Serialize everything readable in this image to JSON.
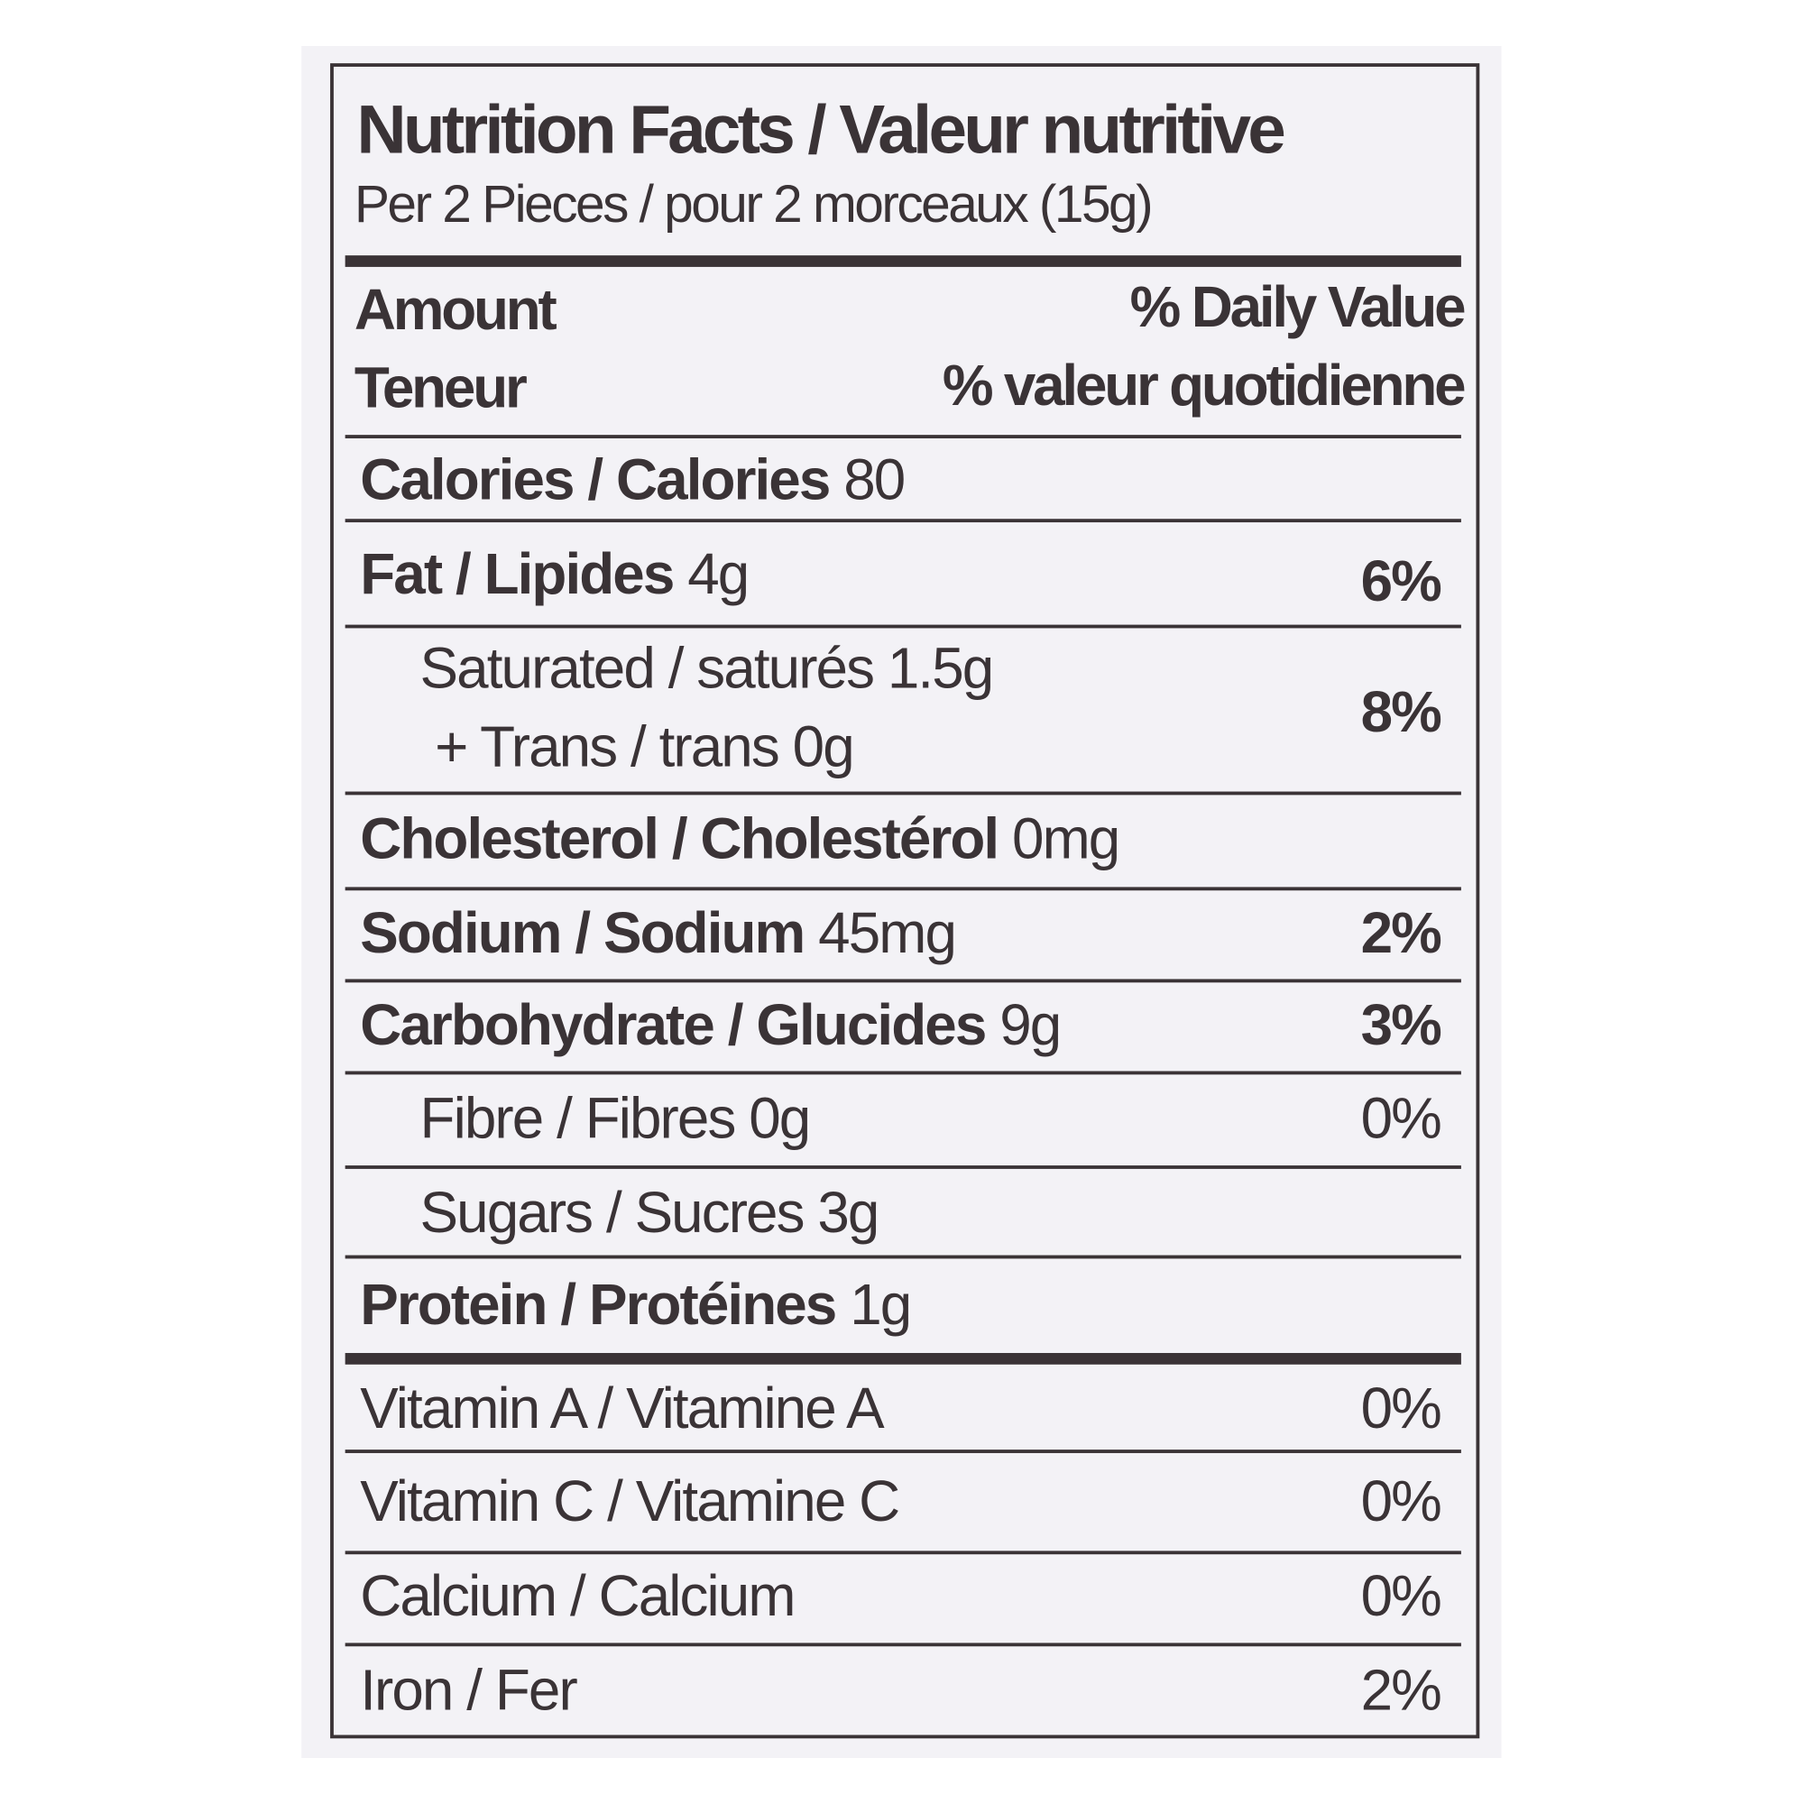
{
  "label": {
    "title": "Nutrition Facts / Valeur nutritive",
    "serving": "Per 2 Pieces / pour 2 morceaux (15g)",
    "header": {
      "amount_en": "Amount",
      "amount_fr": "Teneur",
      "dv_en": "% Daily Value",
      "dv_fr": "% valeur quotidienne"
    },
    "rows": [
      {
        "name": "Calories / Calories",
        "amount": "80",
        "dv": ""
      },
      {
        "name": "Fat / Lipides",
        "amount": "4g",
        "dv": "6%"
      },
      {
        "name": "Saturated / saturés 1.5g",
        "name2": "+ Trans / trans 0g",
        "dv": "8%"
      },
      {
        "name": "Cholesterol / Cholestérol",
        "amount": "0mg",
        "dv": ""
      },
      {
        "name": "Sodium / Sodium",
        "amount": "45mg",
        "dv": "2%"
      },
      {
        "name": "Carbohydrate / Glucides",
        "amount": "9g",
        "dv": "3%"
      },
      {
        "name": "Fibre / Fibres 0g",
        "dv": "0%"
      },
      {
        "name": "Sugars / Sucres 3g",
        "dv": ""
      },
      {
        "name": "Protein / Protéines",
        "amount": "1g",
        "dv": ""
      },
      {
        "name": "Vitamin A / Vitamine A",
        "dv": "0%"
      },
      {
        "name": "Vitamin C / Vitamine C",
        "dv": "0%"
      },
      {
        "name": "Calcium / Calcium",
        "dv": "0%"
      },
      {
        "name": "Iron / Fer",
        "dv": "2%"
      }
    ]
  }
}
